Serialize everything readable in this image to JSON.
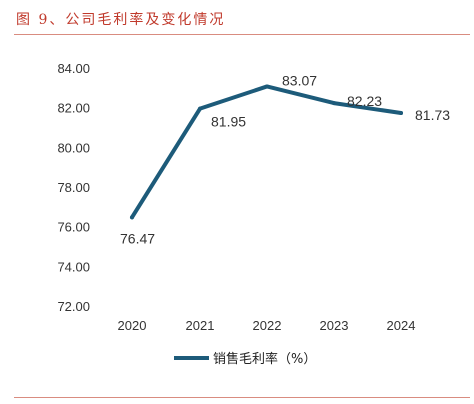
{
  "header": {
    "title": "图 9、公司毛利率及变化情况"
  },
  "chart_data": {
    "type": "line",
    "categories": [
      "2020",
      "2021",
      "2022",
      "2023",
      "2024"
    ],
    "series": [
      {
        "name": "销售毛利率（%）",
        "values": [
          76.47,
          81.95,
          83.07,
          82.23,
          81.73
        ],
        "color": "#1d5b7a"
      }
    ],
    "data_labels": [
      "76.47",
      "81.95",
      "83.07",
      "82.23",
      "81.73"
    ],
    "yticks": [
      "72.00",
      "74.00",
      "76.00",
      "78.00",
      "80.00",
      "82.00",
      "84.00"
    ],
    "ylim": [
      72,
      84
    ],
    "grid": false,
    "legend_position": "bottom"
  }
}
